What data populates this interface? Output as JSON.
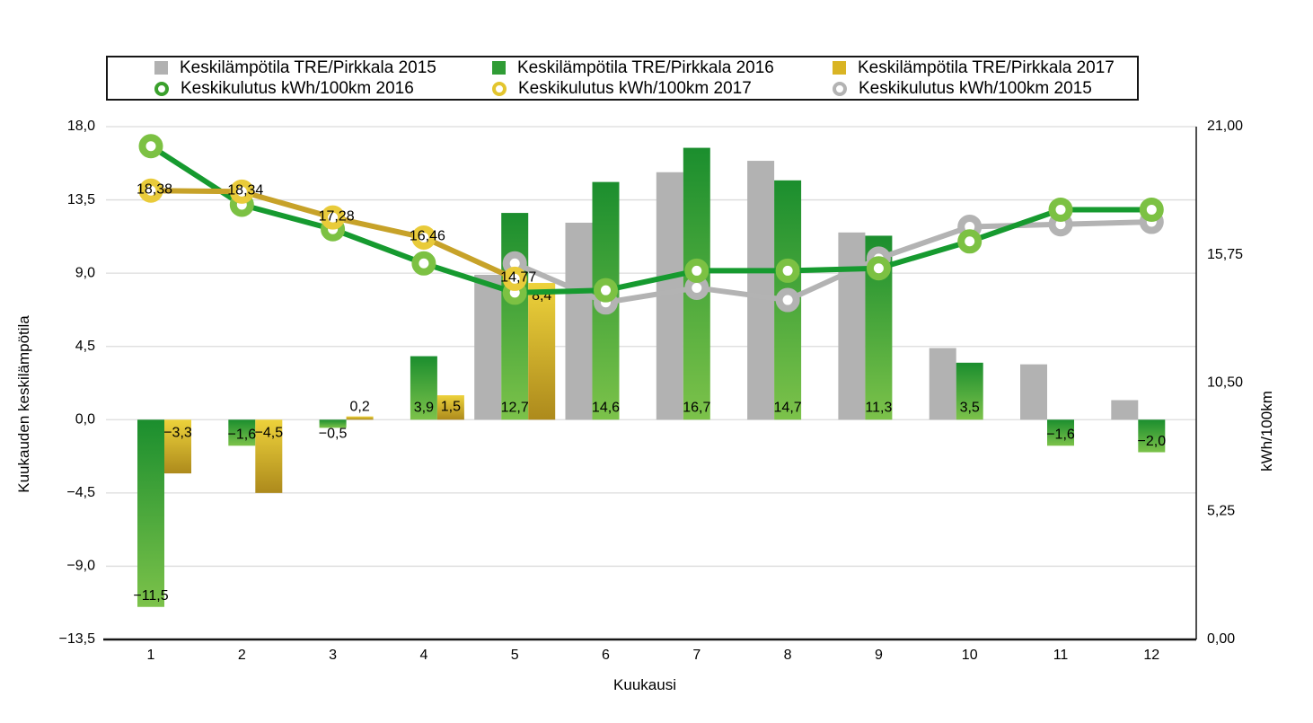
{
  "chart_data": {
    "type": "combo-bar-line",
    "x_axis": {
      "label": "Kuukausi",
      "categories": [
        "1",
        "2",
        "3",
        "4",
        "5",
        "6",
        "7",
        "8",
        "9",
        "10",
        "11",
        "12"
      ]
    },
    "left_axis": {
      "label": "Kuukauden keskilämpötila",
      "min": -13.5,
      "max": 18,
      "tick_values": [
        18,
        13.5,
        9,
        4.5,
        0,
        -4.5,
        -9,
        -13.5
      ],
      "tick_labels": [
        "18,0",
        "13,5",
        "9,0",
        "4,5",
        "0,0",
        "−4,5",
        "−9,0",
        "−13,5"
      ]
    },
    "right_axis": {
      "label": "kWh/100km",
      "min": 0,
      "max": 21,
      "tick_values": [
        21,
        15.75,
        10.5,
        5.25,
        0
      ],
      "tick_labels": [
        "21,00",
        "15,75",
        "10,50",
        "5,25",
        "0,00"
      ]
    },
    "grid": "horizontal",
    "bar_series": [
      {
        "name": "Keskilämpötila TRE/Pirkkala 2015",
        "year": "2015",
        "style": "solid",
        "color": "#b2b2b2",
        "values": [
          null,
          null,
          null,
          null,
          8.9,
          12.1,
          15.2,
          15.9,
          11.5,
          4.4,
          3.4,
          1.2
        ],
        "labels": [
          null,
          null,
          null,
          null,
          null,
          null,
          null,
          null,
          null,
          null,
          null,
          null
        ]
      },
      {
        "name": "Keskilämpötila TRE/Pirkkala 2016",
        "year": "2016",
        "style": "gradient",
        "gradient_top": "#1b8e2e",
        "gradient_bottom": "#7cc24a",
        "values": [
          -11.5,
          -1.6,
          -0.5,
          3.9,
          12.7,
          14.6,
          16.7,
          14.7,
          11.3,
          3.5,
          -1.6,
          -2.0
        ],
        "labels": [
          "−11,5",
          "−1,6",
          "−0,5",
          "3,9",
          "12,7",
          "14,6",
          "16,7",
          "14,7",
          "11,3",
          "3,5",
          "−1,6",
          "−2,0"
        ]
      },
      {
        "name": "Keskilämpötila TRE/Pirkkala 2017",
        "year": "2017",
        "style": "gradient",
        "gradient_top": "#edd23b",
        "gradient_bottom": "#ad8a1c",
        "values": [
          -3.3,
          -4.5,
          0.2,
          1.5,
          8.4,
          null,
          null,
          null,
          null,
          null,
          null,
          null
        ],
        "labels": [
          "−3,3",
          "−4,5",
          "0,2",
          "1,5",
          "8,4",
          null,
          null,
          null,
          null,
          null,
          null,
          null
        ]
      }
    ],
    "line_series": [
      {
        "name": "Keskikulutus kWh/100km 2015",
        "year": "2015",
        "color": "#b3b3b3",
        "marker_color": "#b3b3b3",
        "values": [
          null,
          null,
          null,
          null,
          15.4,
          13.8,
          14.4,
          13.9,
          15.6,
          16.9,
          17.0,
          17.1
        ],
        "labels": [
          null,
          null,
          null,
          null,
          null,
          null,
          null,
          null,
          null,
          null,
          null,
          null
        ]
      },
      {
        "name": "Keskikulutus kWh/100km 2016",
        "year": "2016",
        "color": "#169a2f",
        "marker_color": "#7cc143",
        "values": [
          20.2,
          17.8,
          16.8,
          15.4,
          14.2,
          14.3,
          15.1,
          15.1,
          15.2,
          16.3,
          17.6,
          17.6
        ],
        "labels": [
          null,
          null,
          null,
          null,
          null,
          null,
          null,
          null,
          null,
          null,
          null,
          null
        ]
      },
      {
        "name": "Keskikulutus kWh/100km 2017",
        "year": "2017",
        "color": "#c7a229",
        "marker_color": "#e9cb3a",
        "values": [
          18.38,
          18.34,
          17.28,
          16.46,
          14.77,
          null,
          null,
          null,
          null,
          null,
          null,
          null
        ],
        "labels": [
          "18,38",
          "18,34",
          "17,28",
          "16,46",
          "14,77",
          null,
          null,
          null,
          null,
          null,
          null,
          null
        ]
      }
    ],
    "legend": {
      "position": "top",
      "items": [
        {
          "label": "Keskilämpötila TRE/Pirkkala 2015",
          "marker": "square",
          "color": "#b1b1b1"
        },
        {
          "label": "Keskilämpötila TRE/Pirkkala 2016",
          "marker": "square",
          "color": "#2f9c35"
        },
        {
          "label": "Keskilämpötila TRE/Pirkkala 2017",
          "marker": "square",
          "color": "#d9b424"
        },
        {
          "label": "Keskikulutus kWh/100km 2016",
          "marker": "ring",
          "color": "#3aa02c"
        },
        {
          "label": "Keskikulutus kWh/100km 2017",
          "marker": "ring",
          "color": "#e3c52e"
        },
        {
          "label": "Keskikulutus kWh/100km 2015",
          "marker": "ring",
          "color": "#b3b3b3"
        }
      ]
    },
    "colors": {
      "gridline": "#dcdcdc",
      "axis": "#161616",
      "background": "#ffffff"
    }
  }
}
